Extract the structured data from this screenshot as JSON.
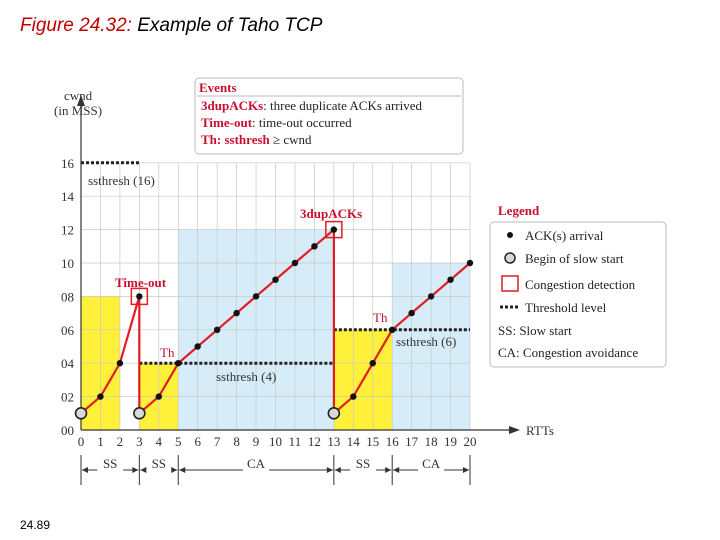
{
  "slide": {
    "figure_label": "Figure 24.32:",
    "figure_caption": "Example of Taho TCP",
    "page_number": "24.89"
  },
  "diagram": {
    "y_axis_label_line1": "cwnd",
    "y_axis_label_line2": "(in MSS)",
    "x_axis_label": "RTTs",
    "y_ticks": [
      "00",
      "02",
      "04",
      "06",
      "08",
      "10",
      "12",
      "14",
      "16"
    ],
    "x_ticks": [
      "0",
      "1",
      "2",
      "3",
      "4",
      "5",
      "6",
      "7",
      "8",
      "9",
      "10",
      "11",
      "12",
      "13",
      "14",
      "15",
      "16",
      "17",
      "18",
      "19",
      "20"
    ],
    "phase_labels": [
      "SS",
      "SS",
      "CA",
      "SS",
      "CA"
    ],
    "events_box": {
      "title": "Events",
      "line1_key": "3dupACKs",
      "line1_text": ": three duplicate ACKs arrived",
      "line2_key": "Time-out",
      "line2_text": ": time-out occurred",
      "line3_key": "Th: ssthresh ",
      "line3_text": "≥  cwnd"
    },
    "annotations": {
      "ssthresh_16": "ssthresh (16)",
      "ssthresh_4": "ssthresh (4)",
      "ssthresh_6": "ssthresh (6)",
      "timeout": "Time-out",
      "dupacks": "3dupACKs",
      "th_1": "Th",
      "th_2": "Th"
    },
    "legend": {
      "title": "Legend",
      "items": [
        "ACK(s) arrival",
        "Begin of slow start",
        "Congestion detection",
        "Threshold level",
        "SS: Slow start",
        "CA: Congestion avoidance"
      ]
    },
    "cwnd_trace": [
      {
        "rtt": 0,
        "cwnd": 1,
        "kind": "begin-slow-start"
      },
      {
        "rtt": 1,
        "cwnd": 2,
        "kind": "ack"
      },
      {
        "rtt": 2,
        "cwnd": 4,
        "kind": "ack"
      },
      {
        "rtt": 3,
        "cwnd": 8,
        "kind": "ack"
      },
      {
        "rtt": 3,
        "cwnd": 1,
        "kind": "begin-slow-start"
      },
      {
        "rtt": 4,
        "cwnd": 2,
        "kind": "ack"
      },
      {
        "rtt": 5,
        "cwnd": 4,
        "kind": "ack"
      },
      {
        "rtt": 6,
        "cwnd": 5,
        "kind": "ack"
      },
      {
        "rtt": 7,
        "cwnd": 6,
        "kind": "ack"
      },
      {
        "rtt": 8,
        "cwnd": 7,
        "kind": "ack"
      },
      {
        "rtt": 9,
        "cwnd": 8,
        "kind": "ack"
      },
      {
        "rtt": 10,
        "cwnd": 9,
        "kind": "ack"
      },
      {
        "rtt": 11,
        "cwnd": 10,
        "kind": "ack"
      },
      {
        "rtt": 12,
        "cwnd": 11,
        "kind": "ack"
      },
      {
        "rtt": 13,
        "cwnd": 12,
        "kind": "ack"
      },
      {
        "rtt": 13,
        "cwnd": 1,
        "kind": "begin-slow-start"
      },
      {
        "rtt": 14,
        "cwnd": 2,
        "kind": "ack"
      },
      {
        "rtt": 15,
        "cwnd": 4,
        "kind": "ack"
      },
      {
        "rtt": 16,
        "cwnd": 6,
        "kind": "ack"
      },
      {
        "rtt": 17,
        "cwnd": 7,
        "kind": "ack"
      },
      {
        "rtt": 18,
        "cwnd": 8,
        "kind": "ack"
      },
      {
        "rtt": 19,
        "cwnd": 9,
        "kind": "ack"
      },
      {
        "rtt": 20,
        "cwnd": 10,
        "kind": "ack"
      }
    ],
    "thresholds": [
      {
        "value": 16,
        "from_rtt": 0,
        "to_rtt": 3
      },
      {
        "value": 4,
        "from_rtt": 3,
        "to_rtt": 13
      },
      {
        "value": 6,
        "from_rtt": 13,
        "to_rtt": 20
      }
    ],
    "congestion_detections": [
      {
        "rtt": 3,
        "cwnd": 8
      },
      {
        "rtt": 13,
        "cwnd": 12
      }
    ],
    "phase_regions": [
      {
        "phase": "SS",
        "from_rtt": 0,
        "to_rtt": 2,
        "top_cwnd": 8
      },
      {
        "phase": "SS",
        "from_rtt": 3,
        "to_rtt": 5,
        "top_cwnd": 4
      },
      {
        "phase": "CA",
        "from_rtt": 5,
        "to_rtt": 13,
        "top_cwnd": 12
      },
      {
        "phase": "SS",
        "from_rtt": 13,
        "to_rtt": 16,
        "top_cwnd": 6
      },
      {
        "phase": "CA",
        "from_rtt": 16,
        "to_rtt": 20,
        "top_cwnd": 10
      }
    ],
    "colors": {
      "ss_fill": "#fff13a",
      "ca_fill": "#d6ecf8",
      "line": "#e31b23",
      "accent_text": "#c8102e",
      "dot": "#111111",
      "begin_fill": "#d9d9d9"
    }
  }
}
